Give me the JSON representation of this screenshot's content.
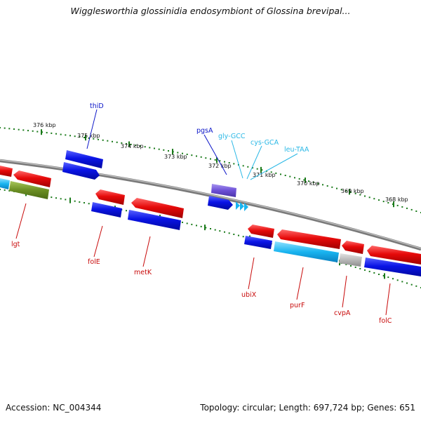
{
  "title": "Wigglesworthia glossinidia endosymbiont of Glossina brevipal...",
  "footer": {
    "accession": "Accession: NC_004344",
    "summary": "Topology: circular; Length: 697,724 bp; Genes: 651"
  },
  "colors": {
    "forward_gene": "#0a14e6",
    "reverse_gene": "#e60a0a",
    "rna_gene": "#19b4f0",
    "other_gene": "#6c4fd6",
    "pseudo_gene": "#b8b8b8",
    "olive_gene": "#6b8e23",
    "label_forward": "#0a14c8",
    "label_reverse": "#c80a0a",
    "label_rna": "#2ab8e6",
    "tick": "#1a7a1a",
    "backbone": "#8a8a8a"
  },
  "scale": {
    "ticks": [
      "376 kbp",
      "375 kbp",
      "374 kbp",
      "373 kbp",
      "372 kbp",
      "371 kbp",
      "370 kbp",
      "369 kbp",
      "368 kbp"
    ]
  },
  "genes": [
    {
      "id": "thiD",
      "label": "thiD",
      "kind": "forward"
    },
    {
      "id": "pgsA",
      "label": "pgsA",
      "kind": "forward"
    },
    {
      "id": "gly-GCC",
      "label": "gly-GCC",
      "kind": "rna"
    },
    {
      "id": "cys-GCA",
      "label": "cys-GCA",
      "kind": "rna"
    },
    {
      "id": "leu-TAA",
      "label": "leu-TAA",
      "kind": "rna"
    },
    {
      "id": "lgt",
      "label": "lgt",
      "kind": "reverse"
    },
    {
      "id": "folE",
      "label": "folE",
      "kind": "reverse"
    },
    {
      "id": "metK",
      "label": "metK",
      "kind": "reverse"
    },
    {
      "id": "ubiX",
      "label": "ubiX",
      "kind": "reverse"
    },
    {
      "id": "purF",
      "label": "purF",
      "kind": "reverse"
    },
    {
      "id": "cvpA",
      "label": "cvpA",
      "kind": "reverse"
    },
    {
      "id": "folC",
      "label": "folC",
      "kind": "reverse"
    }
  ]
}
